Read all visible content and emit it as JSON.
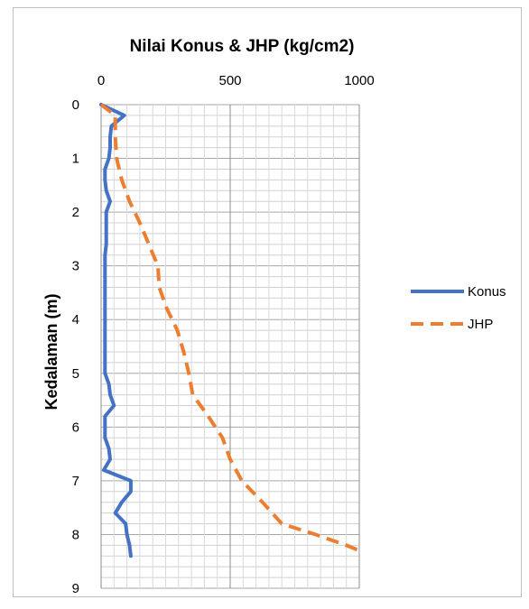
{
  "chart_data": {
    "type": "line",
    "title": "Nilai Konus & JHP (kg/cm2)",
    "xlabel": "",
    "ylabel": "Kedalaman (m)",
    "xlim": [
      0,
      1000
    ],
    "ylim": [
      0,
      9
    ],
    "x_axis_position": "top",
    "y_axis_inverted": true,
    "x_ticks": [
      "0",
      "500",
      "1000"
    ],
    "y_ticks": [
      "0",
      "1",
      "2",
      "3",
      "4",
      "5",
      "6",
      "7",
      "8",
      "9"
    ],
    "grid": {
      "x_major": true,
      "y_minor": true
    },
    "legend_position": "right",
    "series": [
      {
        "name": "Konus",
        "color": "#4472C4",
        "style": "solid",
        "points": [
          [
            0,
            0.0
          ],
          [
            90,
            0.2
          ],
          [
            40,
            0.4
          ],
          [
            35,
            0.6
          ],
          [
            35,
            0.8
          ],
          [
            30,
            1.0
          ],
          [
            15,
            1.2
          ],
          [
            15,
            1.4
          ],
          [
            20,
            1.6
          ],
          [
            35,
            1.8
          ],
          [
            20,
            2.0
          ],
          [
            20,
            2.2
          ],
          [
            20,
            2.4
          ],
          [
            20,
            2.6
          ],
          [
            15,
            2.8
          ],
          [
            15,
            3.0
          ],
          [
            15,
            3.2
          ],
          [
            15,
            3.4
          ],
          [
            15,
            3.6
          ],
          [
            15,
            3.8
          ],
          [
            15,
            4.0
          ],
          [
            15,
            4.2
          ],
          [
            15,
            4.4
          ],
          [
            15,
            4.6
          ],
          [
            15,
            4.8
          ],
          [
            15,
            5.0
          ],
          [
            30,
            5.2
          ],
          [
            35,
            5.4
          ],
          [
            50,
            5.6
          ],
          [
            15,
            5.8
          ],
          [
            15,
            6.0
          ],
          [
            15,
            6.2
          ],
          [
            30,
            6.4
          ],
          [
            35,
            6.6
          ],
          [
            10,
            6.8
          ],
          [
            115,
            7.0
          ],
          [
            115,
            7.2
          ],
          [
            80,
            7.4
          ],
          [
            55,
            7.6
          ],
          [
            95,
            7.8
          ],
          [
            100,
            8.0
          ],
          [
            110,
            8.2
          ],
          [
            115,
            8.4
          ]
        ]
      },
      {
        "name": "JHP",
        "color": "#ED7D31",
        "style": "dashed",
        "points": [
          [
            0,
            0.0
          ],
          [
            55,
            0.2
          ],
          [
            55,
            0.6
          ],
          [
            60,
            1.0
          ],
          [
            80,
            1.4
          ],
          [
            110,
            1.8
          ],
          [
            150,
            2.2
          ],
          [
            185,
            2.6
          ],
          [
            220,
            3.0
          ],
          [
            225,
            3.4
          ],
          [
            255,
            3.8
          ],
          [
            295,
            4.2
          ],
          [
            320,
            4.6
          ],
          [
            340,
            5.0
          ],
          [
            355,
            5.4
          ],
          [
            415,
            5.8
          ],
          [
            470,
            6.2
          ],
          [
            500,
            6.6
          ],
          [
            545,
            7.0
          ],
          [
            625,
            7.4
          ],
          [
            700,
            7.8
          ],
          [
            830,
            8.0
          ],
          [
            950,
            8.2
          ],
          [
            1000,
            8.3
          ]
        ]
      }
    ]
  }
}
